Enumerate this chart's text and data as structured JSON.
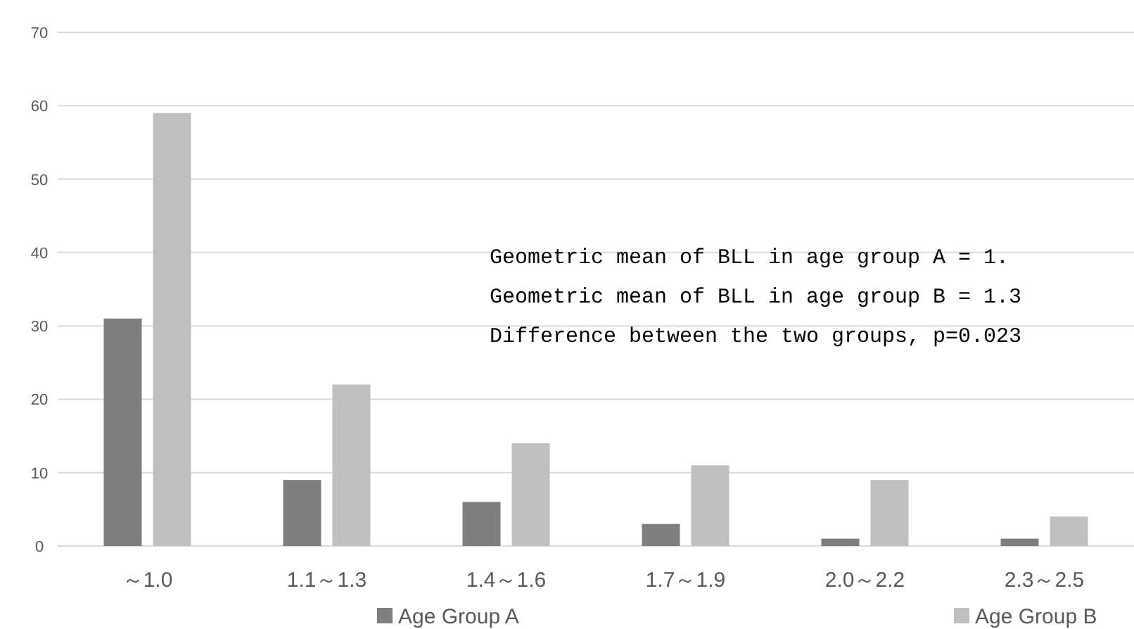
{
  "chart_data": {
    "type": "bar",
    "categories": [
      "～1.0",
      "1.1～1.3",
      "1.4～1.6",
      "1.7～1.9",
      "2.0～2.2",
      "2.3～2.5"
    ],
    "series": [
      {
        "name": "Age Group A",
        "color": "#7f7f7f",
        "values": [
          31,
          9,
          6,
          3,
          1,
          1
        ]
      },
      {
        "name": "Age Group B",
        "color": "#bfbfbf",
        "values": [
          59,
          22,
          14,
          11,
          9,
          4
        ]
      }
    ],
    "ylim": [
      0,
      70
    ],
    "yticks": [
      0,
      10,
      20,
      30,
      40,
      50,
      60,
      70
    ],
    "grid": "y",
    "legend": "bottom",
    "annotations": [
      "Geometric mean of BLL in age group A = 1.",
      "Geometric mean of BLL in age group B = 1.3",
      "Difference between the two groups, p=0.023"
    ]
  }
}
